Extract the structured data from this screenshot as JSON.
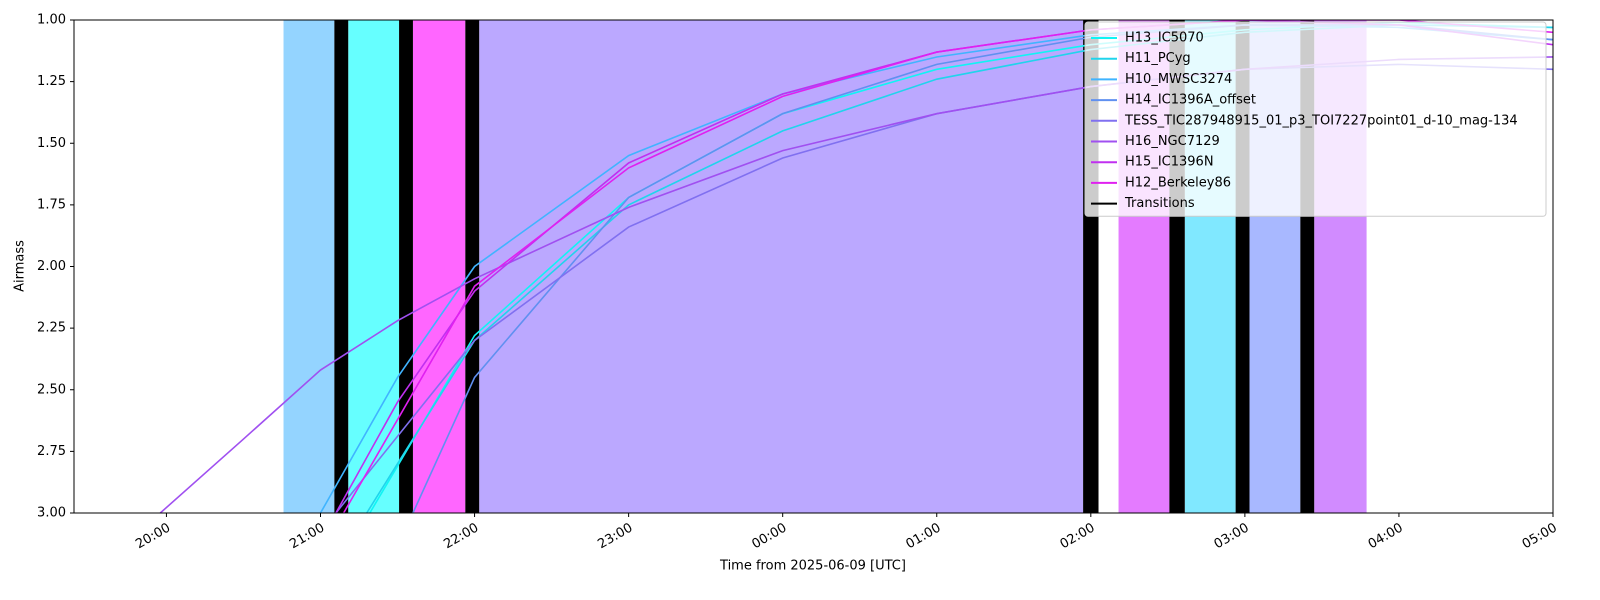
{
  "chart_data": {
    "type": "line",
    "xlabel": "Time from 2025-06-09 [UTC]",
    "ylabel": "Airmass",
    "xlim": [
      19.4,
      29.0
    ],
    "xticks": [
      {
        "value": 20,
        "label": "20:00"
      },
      {
        "value": 21,
        "label": "21:00"
      },
      {
        "value": 22,
        "label": "22:00"
      },
      {
        "value": 23,
        "label": "23:00"
      },
      {
        "value": 24,
        "label": "00:00"
      },
      {
        "value": 25,
        "label": "01:00"
      },
      {
        "value": 26,
        "label": "02:00"
      },
      {
        "value": 27,
        "label": "03:00"
      },
      {
        "value": 28,
        "label": "04:00"
      },
      {
        "value": 29,
        "label": "05:00"
      }
    ],
    "ylim": [
      3.0,
      1.0
    ],
    "yticks": [
      {
        "value": 1.0,
        "label": "1.00"
      },
      {
        "value": 1.25,
        "label": "1.25"
      },
      {
        "value": 1.5,
        "label": "1.50"
      },
      {
        "value": 1.75,
        "label": "1.75"
      },
      {
        "value": 2.0,
        "label": "2.00"
      },
      {
        "value": 2.25,
        "label": "2.25"
      },
      {
        "value": 2.5,
        "label": "2.50"
      },
      {
        "value": 2.75,
        "label": "2.75"
      },
      {
        "value": 3.0,
        "label": "3.00"
      }
    ],
    "legend": "upper right",
    "spans": [
      {
        "x": [
          20.76,
          21.09
        ],
        "color": "#94d4ff"
      },
      {
        "x": [
          21.18,
          21.51
        ],
        "color": "#66ffff"
      },
      {
        "x": [
          21.6,
          21.94
        ],
        "color": "#ff66ff"
      },
      {
        "x": [
          22.03,
          25.95
        ],
        "color": "#bba8ff"
      },
      {
        "x": [
          26.18,
          26.51
        ],
        "color": "#e47bff"
      },
      {
        "x": [
          26.61,
          26.94
        ],
        "color": "#80e8ff"
      },
      {
        "x": [
          27.03,
          27.36
        ],
        "color": "#a8b8ff"
      },
      {
        "x": [
          27.45,
          27.79
        ],
        "color": "#d18bff"
      }
    ],
    "transitions": {
      "name": "Transitions",
      "color": "#000000",
      "x": [
        [
          21.09,
          21.18
        ],
        [
          21.51,
          21.6
        ],
        [
          21.94,
          22.03
        ],
        [
          25.95,
          26.05
        ],
        [
          26.51,
          26.61
        ],
        [
          26.94,
          27.03
        ],
        [
          27.36,
          27.45
        ]
      ]
    },
    "series": [
      {
        "name": "H13_IC5070",
        "color": "#10f4f4",
        "x": [
          21.32,
          22,
          23,
          24,
          25,
          26,
          27,
          28,
          29
        ],
        "values": [
          3.0,
          2.28,
          1.72,
          1.38,
          1.2,
          1.1,
          1.04,
          1.01,
          1.03
        ]
      },
      {
        "name": "H11_PCyg",
        "color": "#20d4ec",
        "x": [
          21.3,
          22,
          23,
          24,
          25,
          26,
          27,
          28,
          29
        ],
        "values": [
          3.0,
          2.3,
          1.75,
          1.45,
          1.24,
          1.12,
          1.05,
          1.02,
          1.03
        ]
      },
      {
        "name": "H10_MWSC3274",
        "color": "#40b4ff",
        "x": [
          21.0,
          21.5,
          22,
          23,
          24,
          25,
          26,
          27,
          28,
          29
        ],
        "values": [
          3.0,
          2.45,
          2.0,
          1.55,
          1.3,
          1.15,
          1.06,
          1.02,
          1.03,
          1.08
        ]
      },
      {
        "name": "H14_IC1396A_offset",
        "color": "#6090f0",
        "x": [
          21.6,
          22,
          23,
          24,
          25,
          26,
          27,
          28,
          29
        ],
        "values": [
          3.0,
          2.45,
          1.72,
          1.38,
          1.18,
          1.07,
          1.02,
          1.02,
          1.08
        ]
      },
      {
        "name": "TESS_TIC287948915_01_p3_TOI7227point01_d-10_mag-134",
        "color": "#8070f0",
        "x": [
          21.1,
          22,
          23,
          24,
          25,
          26,
          27,
          28,
          29
        ],
        "values": [
          3.0,
          2.3,
          1.84,
          1.56,
          1.38,
          1.27,
          1.2,
          1.18,
          1.2
        ]
      },
      {
        "name": "H16_NGC7129",
        "color": "#a050f0",
        "x": [
          19.96,
          20.5,
          21,
          21.5,
          22,
          23,
          24,
          25,
          26,
          27,
          28,
          29
        ],
        "values": [
          3.0,
          2.7,
          2.42,
          2.22,
          2.05,
          1.76,
          1.53,
          1.38,
          1.27,
          1.2,
          1.16,
          1.15
        ]
      },
      {
        "name": "H15_IC1396N",
        "color": "#c030f0",
        "x": [
          21.1,
          21.5,
          22,
          23,
          24,
          25,
          26,
          27,
          28,
          29
        ],
        "values": [
          3.0,
          2.55,
          2.1,
          1.58,
          1.3,
          1.13,
          1.04,
          1.0,
          1.02,
          1.1
        ]
      },
      {
        "name": "H12_Berkeley86",
        "color": "#e020f0",
        "x": [
          21.15,
          22,
          23,
          24,
          25,
          26,
          27,
          28,
          29
        ],
        "values": [
          3.0,
          2.08,
          1.6,
          1.31,
          1.13,
          1.04,
          1.0,
          1.0,
          1.05
        ]
      }
    ]
  }
}
